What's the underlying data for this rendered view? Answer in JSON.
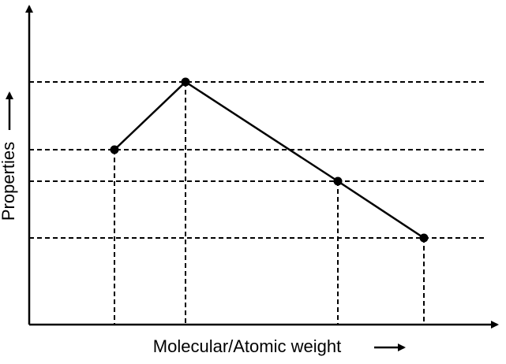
{
  "x_axis_label": "Molecular/Atomic weight",
  "y_axis_label": "Properties"
}
